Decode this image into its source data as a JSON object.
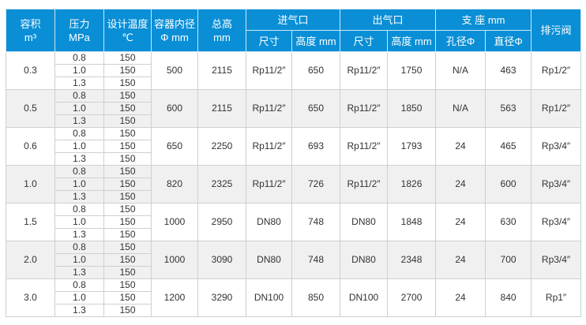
{
  "header": {
    "volume": "容积",
    "volume_unit": "m³",
    "pressure": "压力",
    "pressure_unit": "MPa",
    "temp": "设计温度",
    "temp_unit": "℃",
    "diameter": "容器内径",
    "diameter_unit": "Φ mm",
    "height": "总高",
    "height_unit": "mm",
    "inlet": "进气口",
    "outlet": "出气口",
    "support": "支 座 mm",
    "drain": "排污阀",
    "size": "尺寸",
    "height_mm": "高度 mm",
    "hole": "孔径Φ",
    "support_dia": "直径Φ"
  },
  "header_color": "#0a8fd6",
  "rows": [
    {
      "volume": "0.3",
      "pressures": [
        "0.8",
        "1.0",
        "1.3"
      ],
      "temps": [
        "150",
        "150",
        "150"
      ],
      "diameter": "500",
      "height": "2115",
      "inlet_size": "Rp11/2″",
      "inlet_height": "650",
      "outlet_size": "Rp11/2″",
      "outlet_height": "1750",
      "hole": "N/A",
      "support_dia": "463",
      "drain": "Rp1/2″"
    },
    {
      "volume": "0.5",
      "pressures": [
        "0.8",
        "1.0",
        "1.3"
      ],
      "temps": [
        "150",
        "150",
        "150"
      ],
      "diameter": "600",
      "height": "2115",
      "inlet_size": "Rp11/2″",
      "inlet_height": "650",
      "outlet_size": "Rp11/2″",
      "outlet_height": "1850",
      "hole": "N/A",
      "support_dia": "563",
      "drain": "Rp1/2″"
    },
    {
      "volume": "0.6",
      "pressures": [
        "0.8",
        "1.0",
        "1.3"
      ],
      "temps": [
        "150",
        "150",
        "150"
      ],
      "diameter": "650",
      "height": "2250",
      "inlet_size": "Rp11/2″",
      "inlet_height": "693",
      "outlet_size": "Rp11/2″",
      "outlet_height": "1793",
      "hole": "24",
      "support_dia": "465",
      "drain": "Rp3/4″"
    },
    {
      "volume": "1.0",
      "pressures": [
        "0.8",
        "1.0",
        "1.3"
      ],
      "temps": [
        "150",
        "150",
        "150"
      ],
      "diameter": "820",
      "height": "2325",
      "inlet_size": "Rp11/2″",
      "inlet_height": "726",
      "outlet_size": "Rp11/2″",
      "outlet_height": "1826",
      "hole": "24",
      "support_dia": "600",
      "drain": "Rp3/4″"
    },
    {
      "volume": "1.5",
      "pressures": [
        "0.8",
        "1.0",
        "1.3"
      ],
      "temps": [
        "150",
        "150",
        "150"
      ],
      "diameter": "1000",
      "height": "2950",
      "inlet_size": "DN80",
      "inlet_height": "748",
      "outlet_size": "DN80",
      "outlet_height": "1848",
      "hole": "24",
      "support_dia": "630",
      "drain": "Rp3/4″"
    },
    {
      "volume": "2.0",
      "pressures": [
        "0.8",
        "1.0",
        "1.3"
      ],
      "temps": [
        "150",
        "150",
        "150"
      ],
      "diameter": "1000",
      "height": "3090",
      "inlet_size": "DN80",
      "inlet_height": "748",
      "outlet_size": "DN80",
      "outlet_height": "2348",
      "hole": "24",
      "support_dia": "700",
      "drain": "Rp3/4″"
    },
    {
      "volume": "3.0",
      "pressures": [
        "0.8",
        "1.0",
        "1.3"
      ],
      "temps": [
        "150",
        "150",
        "150"
      ],
      "diameter": "1200",
      "height": "3290",
      "inlet_size": "DN100",
      "inlet_height": "850",
      "outlet_size": "DN100",
      "outlet_height": "2700",
      "hole": "24",
      "support_dia": "840",
      "drain": "Rp1″"
    }
  ]
}
